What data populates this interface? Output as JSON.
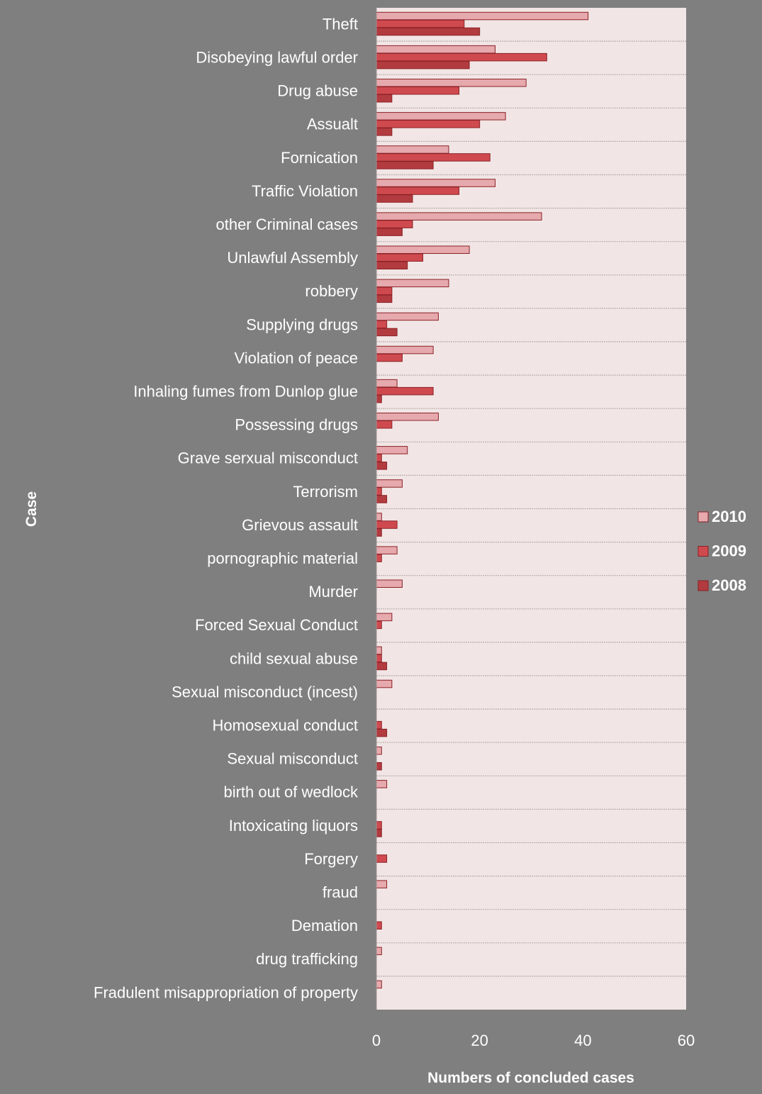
{
  "chart_data": {
    "type": "bar",
    "orientation": "horizontal",
    "title": "",
    "xlabel": "Numbers of concluded cases",
    "ylabel": "Case",
    "xlim": [
      0,
      60
    ],
    "xticks": [
      0,
      20,
      40,
      60
    ],
    "grid": "horizontal separators between categories",
    "legend_position": "right",
    "categories": [
      "Theft",
      "Disobeying lawful order",
      "Drug abuse",
      "Assualt",
      "Fornication",
      "Traffic Violation",
      "other Criminal cases",
      "Unlawful Assembly",
      "robbery",
      "Supplying drugs",
      "Violation of peace",
      "Inhaling fumes from Dunlop glue",
      "Possessing drugs",
      "Grave serxual misconduct",
      "Terrorism",
      "Grievous assault",
      "pornographic material",
      "Murder",
      "Forced Sexual Conduct",
      "child sexual abuse",
      "Sexual misconduct (incest)",
      "Homosexual conduct",
      "Sexual misconduct",
      "birth out of wedlock",
      "Intoxicating liquors",
      "Forgery",
      "fraud",
      "Demation",
      "drug trafficking",
      "Fradulent misappropriation of property"
    ],
    "series": [
      {
        "name": "2010",
        "color": "#e6a9ad",
        "values": [
          41,
          23,
          29,
          25,
          14,
          23,
          32,
          18,
          14,
          12,
          11,
          4,
          12,
          6,
          5,
          1,
          4,
          5,
          3,
          1,
          3,
          0,
          1,
          2,
          0,
          0,
          2,
          0,
          1,
          1
        ]
      },
      {
        "name": "2009",
        "color": "#cf4a4f",
        "values": [
          17,
          33,
          16,
          20,
          22,
          16,
          7,
          9,
          3,
          2,
          5,
          11,
          3,
          1,
          1,
          4,
          1,
          0,
          1,
          1,
          0,
          1,
          0,
          0,
          1,
          2,
          0,
          1,
          0,
          0
        ]
      },
      {
        "name": "2008",
        "color": "#b23b40",
        "values": [
          20,
          18,
          3,
          3,
          11,
          7,
          5,
          6,
          3,
          4,
          0,
          1,
          0,
          2,
          2,
          1,
          0,
          0,
          0,
          2,
          0,
          2,
          1,
          0,
          1,
          0,
          0,
          0,
          0,
          0
        ]
      }
    ]
  },
  "colors": {
    "figure_background": "#7f7f7f",
    "plot_background": "#f2e5e5",
    "bar_outline": "#8a2226",
    "separator": "#b8b0b0",
    "text": "#ffffff"
  }
}
